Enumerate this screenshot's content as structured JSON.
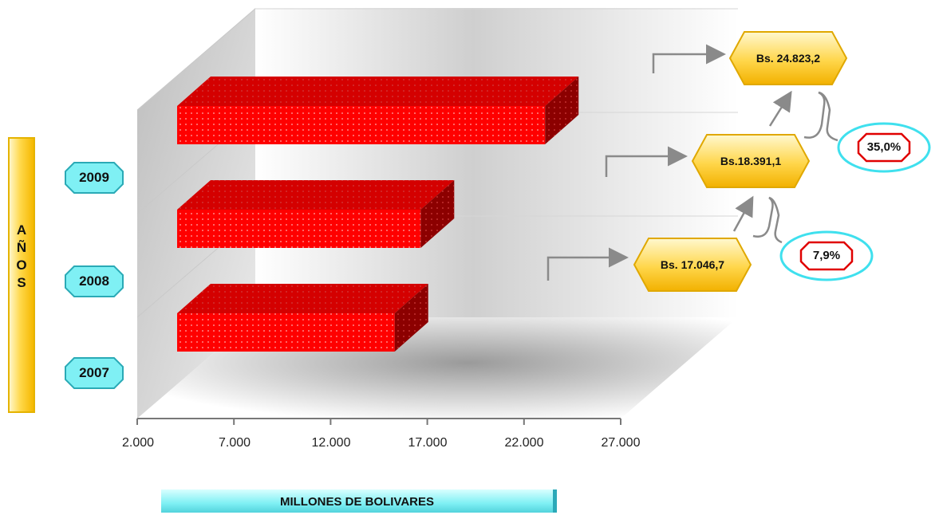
{
  "chart_data": {
    "type": "bar",
    "orientation": "horizontal",
    "three_d": true,
    "categories": [
      "2007",
      "2008",
      "2009"
    ],
    "values": [
      17046.7,
      18391.1,
      24823.2
    ],
    "value_labels": [
      "Bs. 17.046,7",
      "Bs.18.391,1",
      "Bs. 24.823,2"
    ],
    "growth_labels": [
      "7,9%",
      "35,0%"
    ],
    "xlabel": "MILLONES DE BOLIVARES",
    "ylabel": "AÑOS",
    "xlim": [
      2000,
      27000
    ],
    "xticks": [
      "2.000",
      "7.000",
      "12.000",
      "17.000",
      "22.000",
      "27.000"
    ],
    "grid": true,
    "colors": {
      "bar": "#ff0000",
      "bar_side": "#8c0000",
      "year_box": "#7ff0f4",
      "callout": "#ffc72c",
      "pct_ring": "#3fe0ee",
      "pct_border": "#e00000"
    }
  }
}
